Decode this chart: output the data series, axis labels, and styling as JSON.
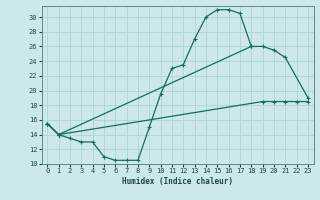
{
  "xlabel": "Humidex (Indice chaleur)",
  "bg_color": "#cce8ea",
  "line_color": "#1a6b5a",
  "grid_color": "#b0d8da",
  "xlim": [
    -0.5,
    23.5
  ],
  "ylim": [
    10,
    31.5
  ],
  "yticks": [
    10,
    12,
    14,
    16,
    18,
    20,
    22,
    24,
    26,
    28,
    30
  ],
  "xticks": [
    0,
    1,
    2,
    3,
    4,
    5,
    6,
    7,
    8,
    9,
    10,
    11,
    12,
    13,
    14,
    15,
    16,
    17,
    18,
    19,
    20,
    21,
    22,
    23
  ],
  "line1_x": [
    0,
    1,
    2,
    3,
    4,
    5,
    6,
    7,
    8,
    9,
    10,
    11,
    12,
    13,
    14,
    15,
    16,
    17,
    18
  ],
  "line1_y": [
    15.5,
    14.0,
    13.5,
    13.0,
    13.0,
    11.0,
    10.5,
    10.5,
    10.5,
    15.0,
    19.5,
    23.0,
    23.5,
    27.0,
    30.0,
    31.0,
    31.0,
    30.5,
    26.0
  ],
  "line2_x": [
    0,
    1,
    18,
    19,
    20,
    21,
    23
  ],
  "line2_y": [
    15.5,
    14.0,
    26.0,
    26.0,
    25.5,
    24.5,
    19.0
  ],
  "line3_x": [
    0,
    1,
    19,
    20,
    21,
    22,
    23
  ],
  "line3_y": [
    15.5,
    14.0,
    18.5,
    18.5,
    18.5,
    18.5,
    18.5
  ]
}
